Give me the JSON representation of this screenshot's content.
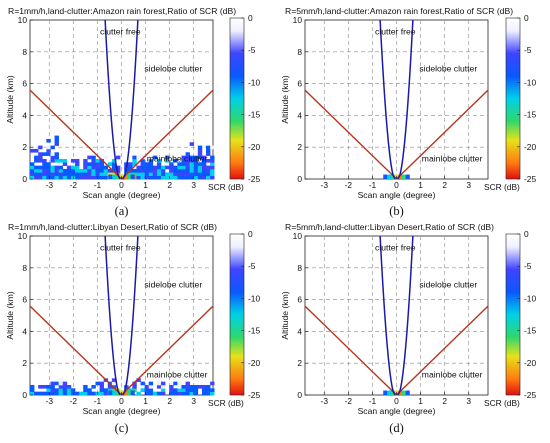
{
  "figure": {
    "panels": [
      {
        "id": "a",
        "title": "R=1mm/h,land-clutter:Amazon rain forest,Ratio of SCR (dB)",
        "caption": "(a)",
        "density": 1.0,
        "desert": false
      },
      {
        "id": "b",
        "title": "R=5mm/h,land-clutter:Amazon rain forest,Ratio of SCR (dB)",
        "caption": "(b)",
        "density": 0.0,
        "desert": false
      },
      {
        "id": "c",
        "title": "R=1mm/h,land-clutter:Libyan Desert,Ratio of SCR (dB)",
        "caption": "(c)",
        "density": 0.75,
        "desert": true
      },
      {
        "id": "d",
        "title": "R=5mm/h,land-clutter:Libyan Desert,Ratio of SCR (dB)",
        "caption": "(d)",
        "density": 0.0,
        "desert": false
      }
    ],
    "annotations": {
      "clutter_free": "clutter free",
      "sidelobe": "sidelobe  clutter",
      "mainlobe": "mainlobe clutter"
    },
    "colorbar_label": "SCR (dB)"
  },
  "chart_data": {
    "type": "heatmap",
    "xlabel": "Scan angle (degree)",
    "ylabel": "Altitude (km)",
    "xlim": [
      -3.8,
      3.8
    ],
    "ylim": [
      0,
      10
    ],
    "xticks": [
      -3,
      -2,
      -1,
      0,
      1,
      2,
      3
    ],
    "yticks": [
      0,
      2,
      4,
      6,
      8,
      10
    ],
    "colorbar_ticks": [
      0,
      -5,
      -10,
      -15,
      -20,
      -25
    ],
    "colorbar_range": [
      -25,
      0
    ],
    "grid": true,
    "lines": {
      "clutter_free_boundary_top": {
        "x": [
          -0.68,
          0.68
        ],
        "y": 10
      },
      "sidelobe_boundary_slope_km_per_degree": 1.47,
      "mainlobe_vertex": [
        0,
        0
      ]
    },
    "colors": {
      "clutter_free_line": "#1a1aa8",
      "sidelobe_line": "#b8341c",
      "grid": "#8c8c8c"
    }
  }
}
